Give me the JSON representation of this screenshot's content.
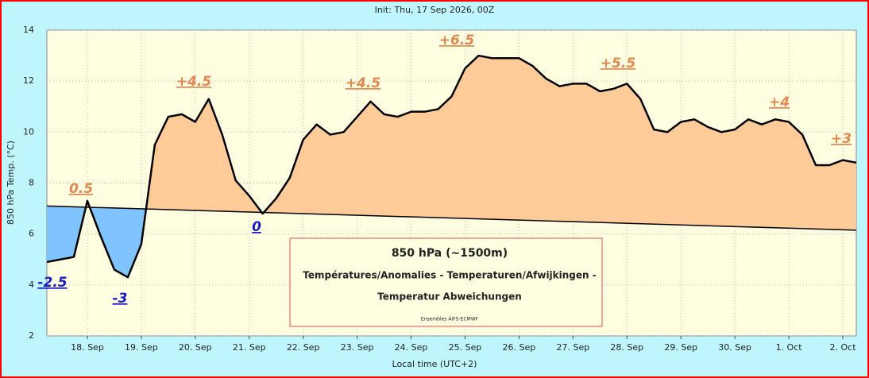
{
  "chart_data": {
    "type": "line",
    "title": "Init: Thu, 17 Sep 2026, 00Z",
    "y_label": "850 hPa Temp. (°C)",
    "x_label": "Local time (UTC+2)",
    "legend_box": [
      "850 hPa (~1500m)",
      "Températures/Anomalies - Temperaturen/Afwijkingen -",
      "Temperatur Abweichungen",
      "Ensembles AIFS-ECMWF"
    ],
    "x": [
      18,
      24,
      30,
      36,
      42,
      48,
      54,
      60,
      66,
      72,
      78,
      84,
      90,
      96,
      102,
      108,
      114,
      120,
      126,
      132,
      138,
      144,
      150,
      156,
      162,
      168,
      174,
      180,
      186,
      192,
      198,
      204,
      210,
      216,
      222,
      228,
      234,
      240,
      246,
      252,
      258,
      264,
      270,
      276,
      282,
      288,
      294,
      300,
      306,
      312,
      318,
      324,
      330,
      336,
      342,
      348,
      354,
      360,
      366,
      372,
      378
    ],
    "series": [
      {
        "name": "850 hPa Temp.",
        "color": "#000000",
        "values": [
          4.9,
          5.0,
          5.1,
          7.3,
          5.9,
          4.6,
          4.3,
          5.6,
          9.5,
          10.6,
          10.7,
          10.4,
          11.3,
          9.9,
          8.1,
          7.5,
          6.8,
          7.4,
          8.2,
          9.7,
          10.3,
          9.9,
          10.0,
          10.6,
          11.2,
          10.7,
          10.6,
          10.8,
          10.8,
          10.9,
          11.4,
          12.5,
          13.0,
          12.9,
          12.9,
          12.9,
          12.6,
          12.1,
          11.8,
          11.9,
          11.9,
          11.6,
          11.7,
          11.9,
          11.3,
          10.1,
          10.0,
          10.4,
          10.5,
          10.2,
          10.0,
          10.1,
          10.5,
          10.3,
          10.5,
          10.4,
          9.9,
          8.7,
          8.7,
          8.9,
          8.8
        ]
      },
      {
        "name": "Climatology",
        "color": "#000000",
        "x": [
          18,
          378
        ],
        "values": [
          7.1,
          6.15
        ]
      }
    ],
    "above_color": "#ffcc99",
    "below_color": "#80c4ff",
    "annotations": [
      "-2.5",
      "0.5",
      "-3",
      "+4.5",
      "0",
      "+4.5",
      "+6.5",
      "+5.5",
      "+4",
      "+3"
    ],
    "xlim": [
      18,
      378
    ],
    "xticks": [
      {
        "value": 36,
        "label": "18. Sep"
      },
      {
        "value": 60,
        "label": "19. Sep"
      },
      {
        "value": 84,
        "label": "20. Sep"
      },
      {
        "value": 108,
        "label": "21. Sep"
      },
      {
        "value": 132,
        "label": "22. Sep"
      },
      {
        "value": 156,
        "label": "23. Sep"
      },
      {
        "value": 180,
        "label": "24. Sep"
      },
      {
        "value": 204,
        "label": "25. Sep"
      },
      {
        "value": 228,
        "label": "26. Sep"
      },
      {
        "value": 252,
        "label": "27. Sep"
      },
      {
        "value": 276,
        "label": "28. Sep"
      },
      {
        "value": 300,
        "label": "29. Sep"
      },
      {
        "value": 324,
        "label": "30. Sep"
      },
      {
        "value": 348,
        "label": "1. Oct"
      },
      {
        "value": 372,
        "label": "2. Oct"
      }
    ],
    "ylim": [
      2,
      14
    ],
    "yticks": [
      2,
      4,
      6,
      8,
      10,
      12,
      14
    ],
    "grid": true
  }
}
